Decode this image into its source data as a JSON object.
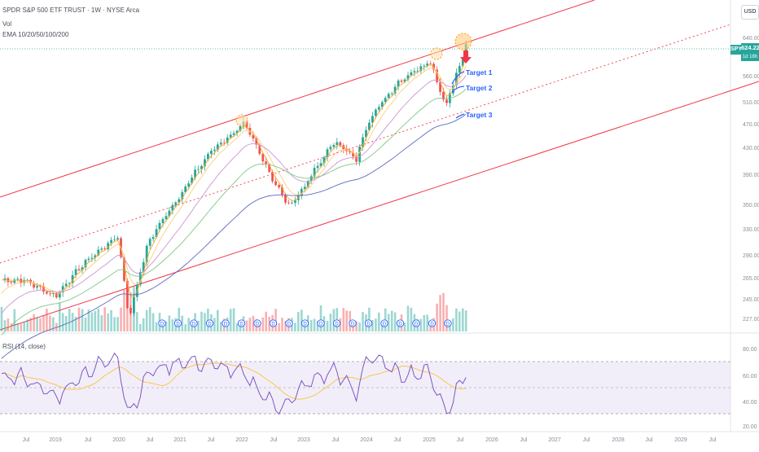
{
  "header": {
    "title": "SPDR S&P 500 ETF TRUST · 1W · NYSE Arca",
    "vol": "Vol",
    "ema": "EMA 10/20/50/100/200",
    "currency": "USD"
  },
  "price_tag": {
    "symbol": "SPY",
    "price": "624.22",
    "countdown": "1d 18h"
  },
  "targets": [
    "Target 1",
    "Target 2",
    "Target 3"
  ],
  "rsi_label": "RSI (14, close)",
  "price_axis": [
    "640.00",
    "560.00",
    "510.00",
    "470.00",
    "430.00",
    "390.00",
    "350.00",
    "330.00",
    "290.00",
    "265.00",
    "245.00",
    "227.00"
  ],
  "rsi_axis": [
    "80.00",
    "60.00",
    "40.00",
    "20.00"
  ],
  "time_axis": [
    "Jul",
    "2019",
    "Jul",
    "2020",
    "Jul",
    "2021",
    "Jul",
    "2022",
    "Jul",
    "2023",
    "Jul",
    "2024",
    "Jul",
    "2025",
    "Jul",
    "2026",
    "Jul",
    "2027",
    "Jul",
    "2028",
    "Jul",
    "2029",
    "Jul"
  ],
  "colors": {
    "up": "#26a69a",
    "down": "#ef5350",
    "channel": "#f23645",
    "rsi": "#7e57c2",
    "target": "#2962ff"
  },
  "chart_data": [
    {
      "type": "candlestick",
      "title": "SPDR S&P 500 ETF TRUST · 1W · NYSE Arca",
      "interval": "1W",
      "scale": "log",
      "ylim": [
        227,
        640
      ],
      "x": [
        "2018-07",
        "2019-01",
        "2019-07",
        "2020-01",
        "2020-03",
        "2020-07",
        "2021-01",
        "2021-07",
        "2022-01",
        "2022-07",
        "2022-10",
        "2023-01",
        "2023-07",
        "2023-10",
        "2024-01",
        "2024-07",
        "2025-01",
        "2025-04",
        "2025-07"
      ],
      "close": [
        280,
        265,
        298,
        325,
        245,
        320,
        375,
        435,
        475,
        390,
        360,
        385,
        450,
        420,
        480,
        550,
        590,
        505,
        624.22
      ],
      "series": [
        {
          "name": "EMA 10"
        },
        {
          "name": "EMA 20"
        },
        {
          "name": "EMA 50"
        },
        {
          "name": "EMA 100"
        },
        {
          "name": "EMA 200"
        }
      ],
      "annotations": [
        "Target 1",
        "Target 2",
        "Target 3"
      ],
      "last_price": 624.22
    },
    {
      "type": "line",
      "title": "RSI (14, close)",
      "ylim": [
        20,
        85
      ],
      "levels": [
        70,
        50,
        30
      ],
      "x": [
        "2018-07",
        "2019-01",
        "2019-07",
        "2020-01",
        "2020-03",
        "2020-07",
        "2021-01",
        "2021-07",
        "2022-01",
        "2022-07",
        "2022-10",
        "2023-01",
        "2023-07",
        "2023-10",
        "2024-01",
        "2024-07",
        "2025-01",
        "2025-04",
        "2025-07"
      ],
      "values": [
        58,
        42,
        62,
        74,
        28,
        62,
        70,
        68,
        60,
        36,
        38,
        52,
        64,
        44,
        76,
        60,
        62,
        30,
        66
      ]
    }
  ]
}
